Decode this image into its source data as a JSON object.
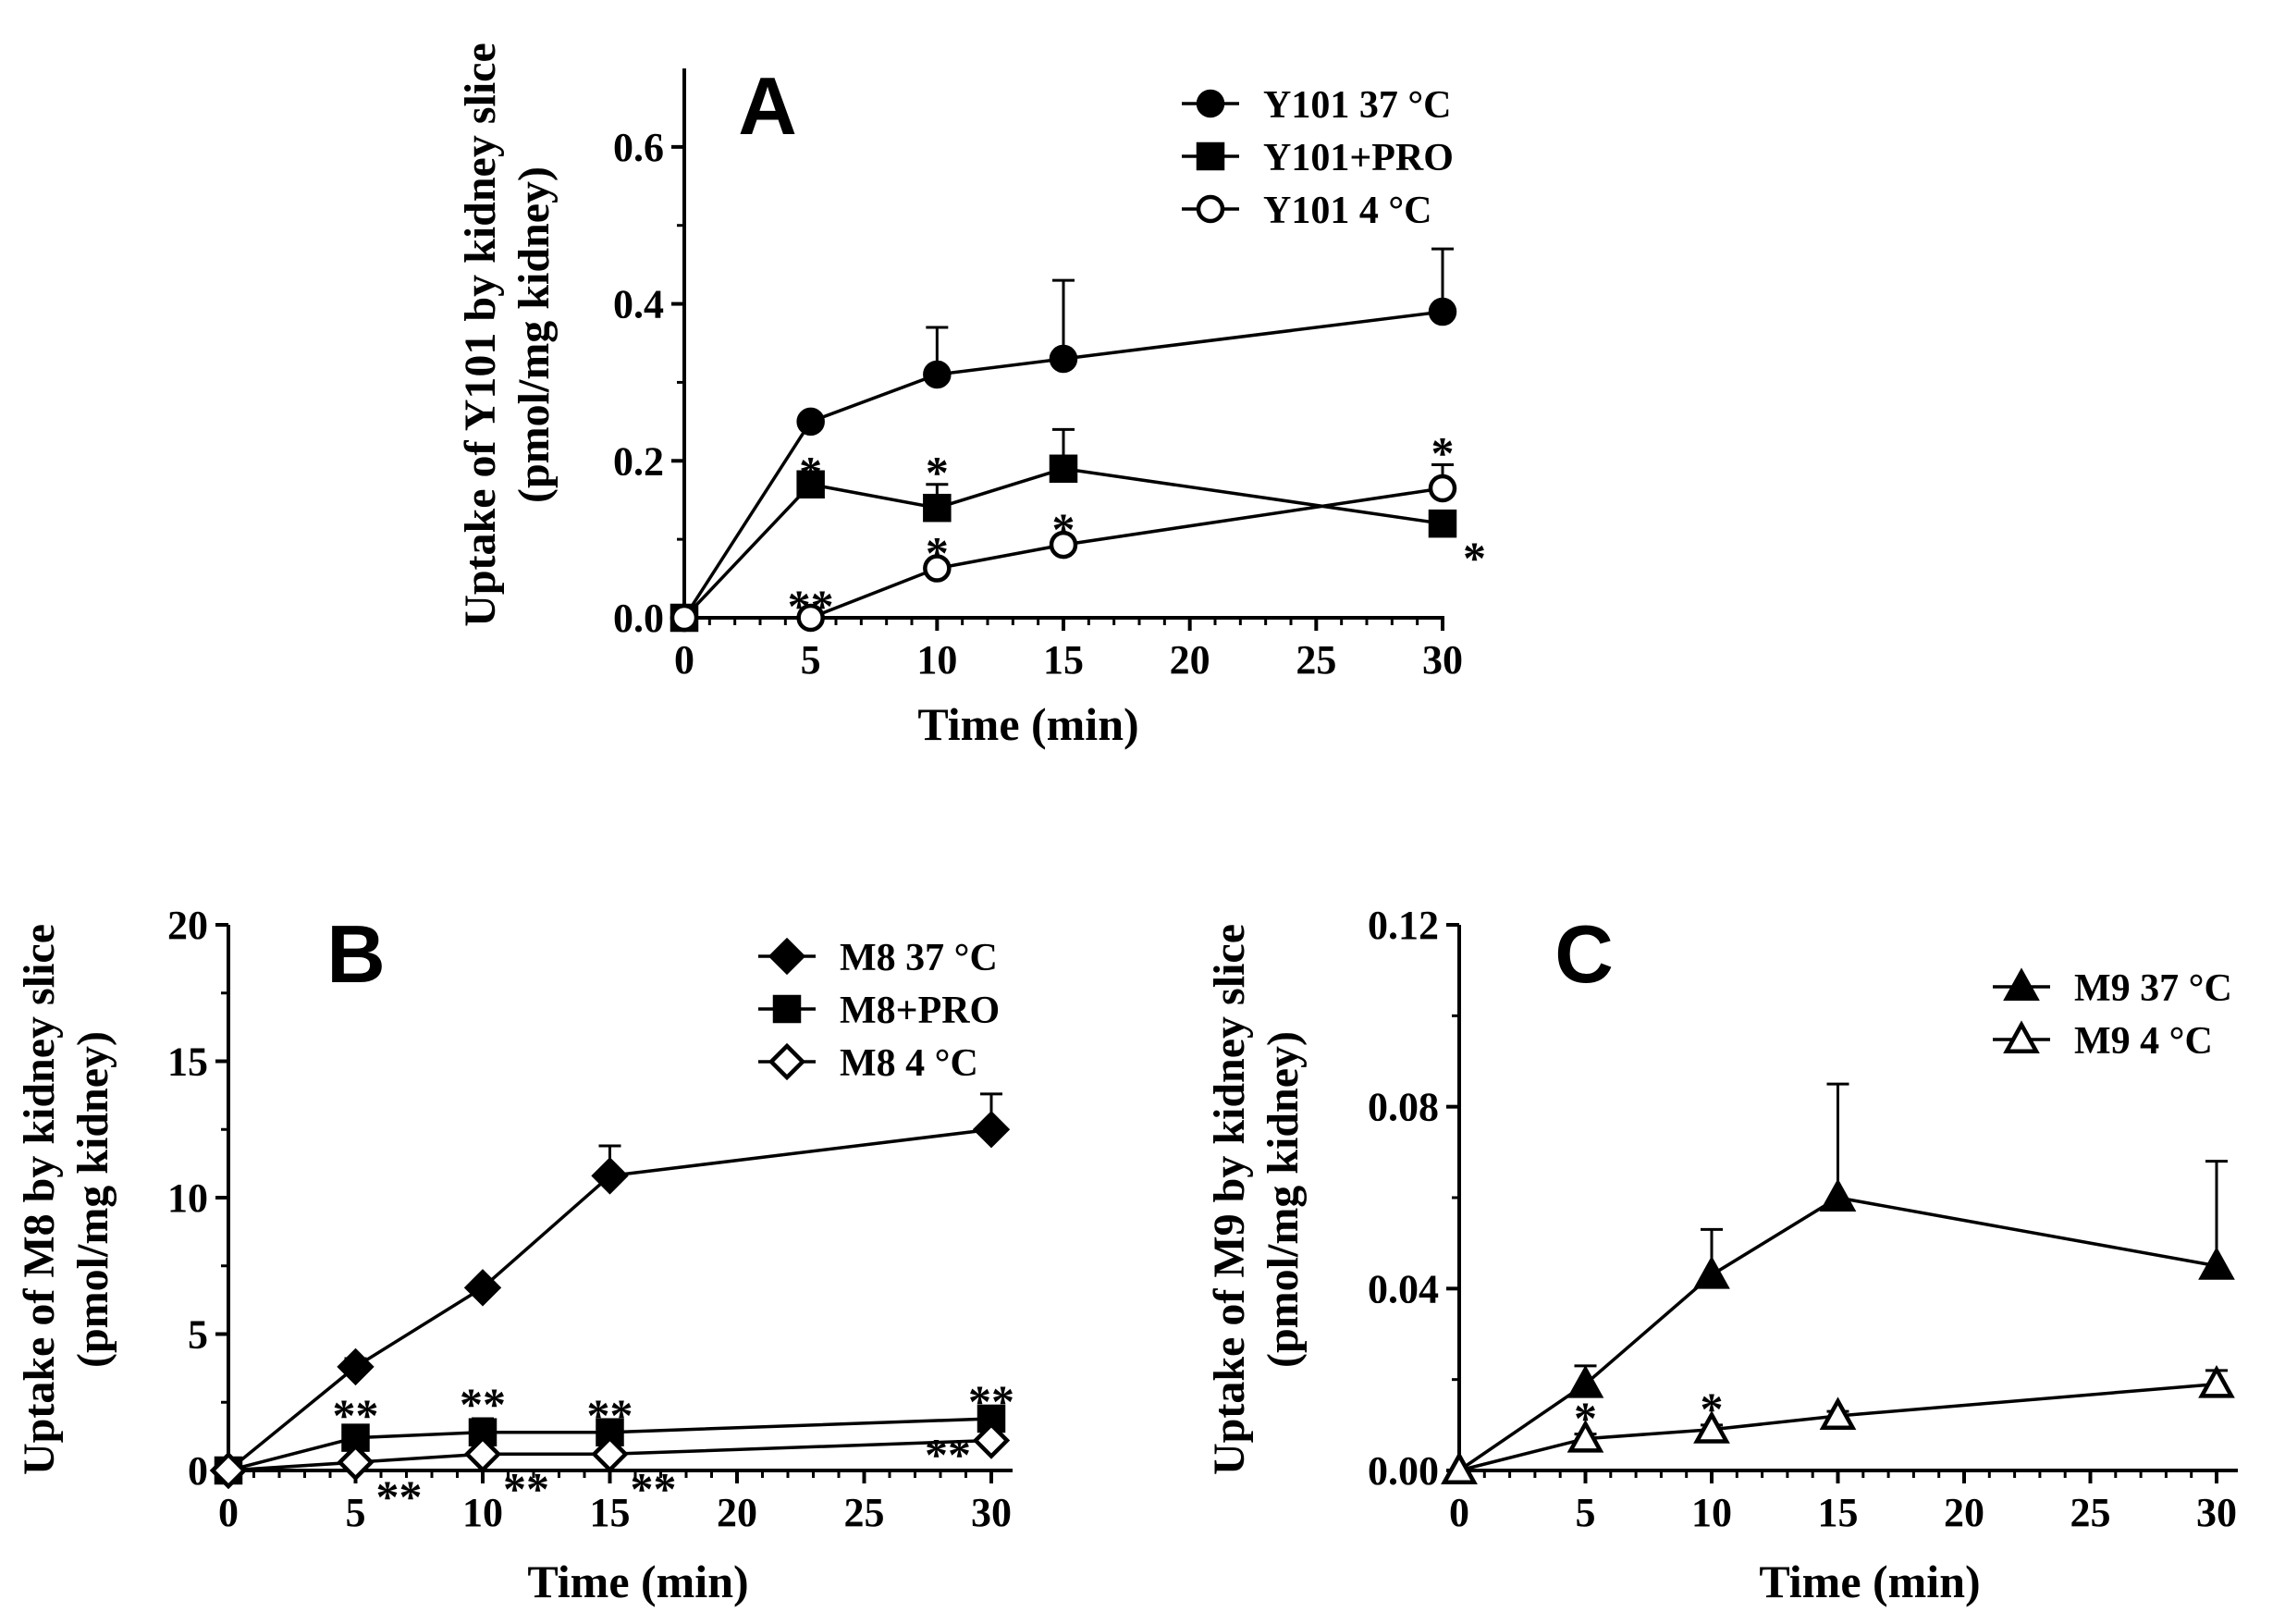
{
  "chart_data": [
    {
      "panel": "A",
      "type": "line",
      "xlabel": "Time (min)",
      "ylabel_line1": "Uptake of Y101 by kidney slice",
      "ylabel_line2": "(pmol/mg kidney)",
      "xlim": [
        0,
        30
      ],
      "ylim": [
        0,
        0.7
      ],
      "xticks": [
        0,
        5,
        10,
        15,
        20,
        25,
        30
      ],
      "xtick_labels": [
        "0",
        "5",
        "10",
        "15",
        "20",
        "25",
        "30"
      ],
      "yticks": [
        0,
        0.2,
        0.4,
        0.6
      ],
      "ytick_labels": [
        "0.0",
        "0.2",
        "0.4",
        "0.6"
      ],
      "legend_position": "top-right",
      "grid": false,
      "series": [
        {
          "name": "Y101 37 °C",
          "marker": "circle-filled",
          "x": [
            0,
            5,
            10,
            15,
            30
          ],
          "y": [
            0.0,
            0.25,
            0.31,
            0.33,
            0.39
          ],
          "err": [
            0,
            0,
            0.06,
            0.1,
            0.08
          ]
        },
        {
          "name": "Y101+PRO",
          "marker": "square-filled",
          "x": [
            0,
            5,
            10,
            15,
            30
          ],
          "y": [
            0.0,
            0.17,
            0.14,
            0.19,
            0.12
          ],
          "err": [
            0,
            0.01,
            0.03,
            0.05,
            0.01
          ]
        },
        {
          "name": "Y101 4 °C",
          "marker": "circle-open",
          "x": [
            0,
            5,
            10,
            15,
            30
          ],
          "y": [
            0.0,
            0.0,
            0.063,
            0.093,
            0.165
          ],
          "err": [
            0,
            0,
            0.005,
            0.005,
            0.03
          ]
        }
      ],
      "annotations": [
        {
          "text": "*",
          "x": 5,
          "y": 0.17,
          "anchor": "above"
        },
        {
          "text": "*",
          "x": 10,
          "y": 0.17,
          "anchor": "above"
        },
        {
          "text": "*",
          "x": 30,
          "y": 0.195,
          "anchor": "above"
        },
        {
          "text": "*",
          "x": 30,
          "y": 0.12,
          "anchor": "right"
        },
        {
          "text": "**",
          "x": 5,
          "y": 0.0,
          "anchor": "above"
        },
        {
          "text": "*",
          "x": 10,
          "y": 0.068,
          "anchor": "above"
        },
        {
          "text": "*",
          "x": 15,
          "y": 0.098,
          "anchor": "above"
        }
      ]
    },
    {
      "panel": "B",
      "type": "line",
      "xlabel": "Time (min)",
      "ylabel_line1": "Uptake of M8 by kidney slice",
      "ylabel_line2": "(pmol/mg kidney)",
      "xlim": [
        0,
        30
      ],
      "ylim": [
        0,
        20
      ],
      "xticks": [
        0,
        5,
        10,
        15,
        20,
        25,
        30
      ],
      "xtick_labels": [
        "0",
        "5",
        "10",
        "15",
        "20",
        "25",
        "30"
      ],
      "yticks": [
        0,
        5,
        10,
        15,
        20
      ],
      "ytick_labels": [
        "0",
        "5",
        "10",
        "15",
        "20"
      ],
      "legend_position": "top-right",
      "grid": false,
      "series": [
        {
          "name": "M8 37 °C",
          "marker": "diamond-filled",
          "x": [
            0,
            5,
            10,
            15,
            30
          ],
          "y": [
            0.0,
            3.8,
            6.7,
            10.8,
            12.5
          ],
          "err": [
            0,
            0.3,
            0,
            1.1,
            1.3
          ]
        },
        {
          "name": "M8+PRO",
          "marker": "square-filled",
          "x": [
            0,
            5,
            10,
            15,
            30
          ],
          "y": [
            0.0,
            1.2,
            1.4,
            1.4,
            1.9
          ],
          "err": [
            0,
            0,
            0.5,
            0.1,
            0.1
          ]
        },
        {
          "name": "M8 4 °C",
          "marker": "diamond-open",
          "x": [
            0,
            5,
            10,
            15,
            30
          ],
          "y": [
            0.0,
            0.3,
            0.6,
            0.6,
            1.1
          ],
          "err": [
            0,
            0,
            0,
            0,
            0.1
          ]
        }
      ],
      "annotations": [
        {
          "text": "**",
          "x": 5,
          "y": 1.6,
          "anchor": "above"
        },
        {
          "text": "**",
          "x": 10,
          "y": 2.0,
          "anchor": "above"
        },
        {
          "text": "**",
          "x": 15,
          "y": 1.6,
          "anchor": "above"
        },
        {
          "text": "**",
          "x": 30,
          "y": 2.1,
          "anchor": "above"
        },
        {
          "text": "**",
          "x": 5,
          "y": 0.3,
          "anchor": "right"
        },
        {
          "text": "**",
          "x": 10,
          "y": 0.6,
          "anchor": "right"
        },
        {
          "text": "**",
          "x": 15,
          "y": 0.6,
          "anchor": "right"
        },
        {
          "text": "**",
          "x": 30,
          "y": 1.1,
          "anchor": "left"
        }
      ]
    },
    {
      "panel": "C",
      "type": "line",
      "xlabel": "Time (min)",
      "ylabel_line1": "Uptake of M9 by kidney slice",
      "ylabel_line2": "(pmol/mg kidney)",
      "xlim": [
        0,
        30
      ],
      "ylim": [
        0,
        0.12
      ],
      "xticks": [
        0,
        5,
        10,
        15,
        20,
        25,
        30
      ],
      "xtick_labels": [
        "0",
        "5",
        "10",
        "15",
        "20",
        "25",
        "30"
      ],
      "yticks": [
        0,
        0.04,
        0.08,
        0.12
      ],
      "ytick_labels": [
        "0.00",
        "0.04",
        "0.08",
        "0.12"
      ],
      "legend_position": "top-right",
      "grid": false,
      "series": [
        {
          "name": "M9 37 °C",
          "marker": "triangle-filled",
          "x": [
            0,
            5,
            10,
            15,
            30
          ],
          "y": [
            0.0,
            0.019,
            0.043,
            0.06,
            0.045
          ],
          "err": [
            0,
            0.004,
            0.01,
            0.025,
            0.023
          ]
        },
        {
          "name": "M9 4 °C",
          "marker": "triangle-open",
          "x": [
            0,
            5,
            10,
            15,
            30
          ],
          "y": [
            0.0,
            0.007,
            0.009,
            0.012,
            0.019
          ],
          "err": [
            0,
            0.001,
            0.001,
            0.001,
            0.003
          ]
        }
      ],
      "annotations": [
        {
          "text": "*",
          "x": 5,
          "y": 0.009,
          "anchor": "above"
        },
        {
          "text": "*",
          "x": 10,
          "y": 0.011,
          "anchor": "above"
        }
      ]
    }
  ]
}
